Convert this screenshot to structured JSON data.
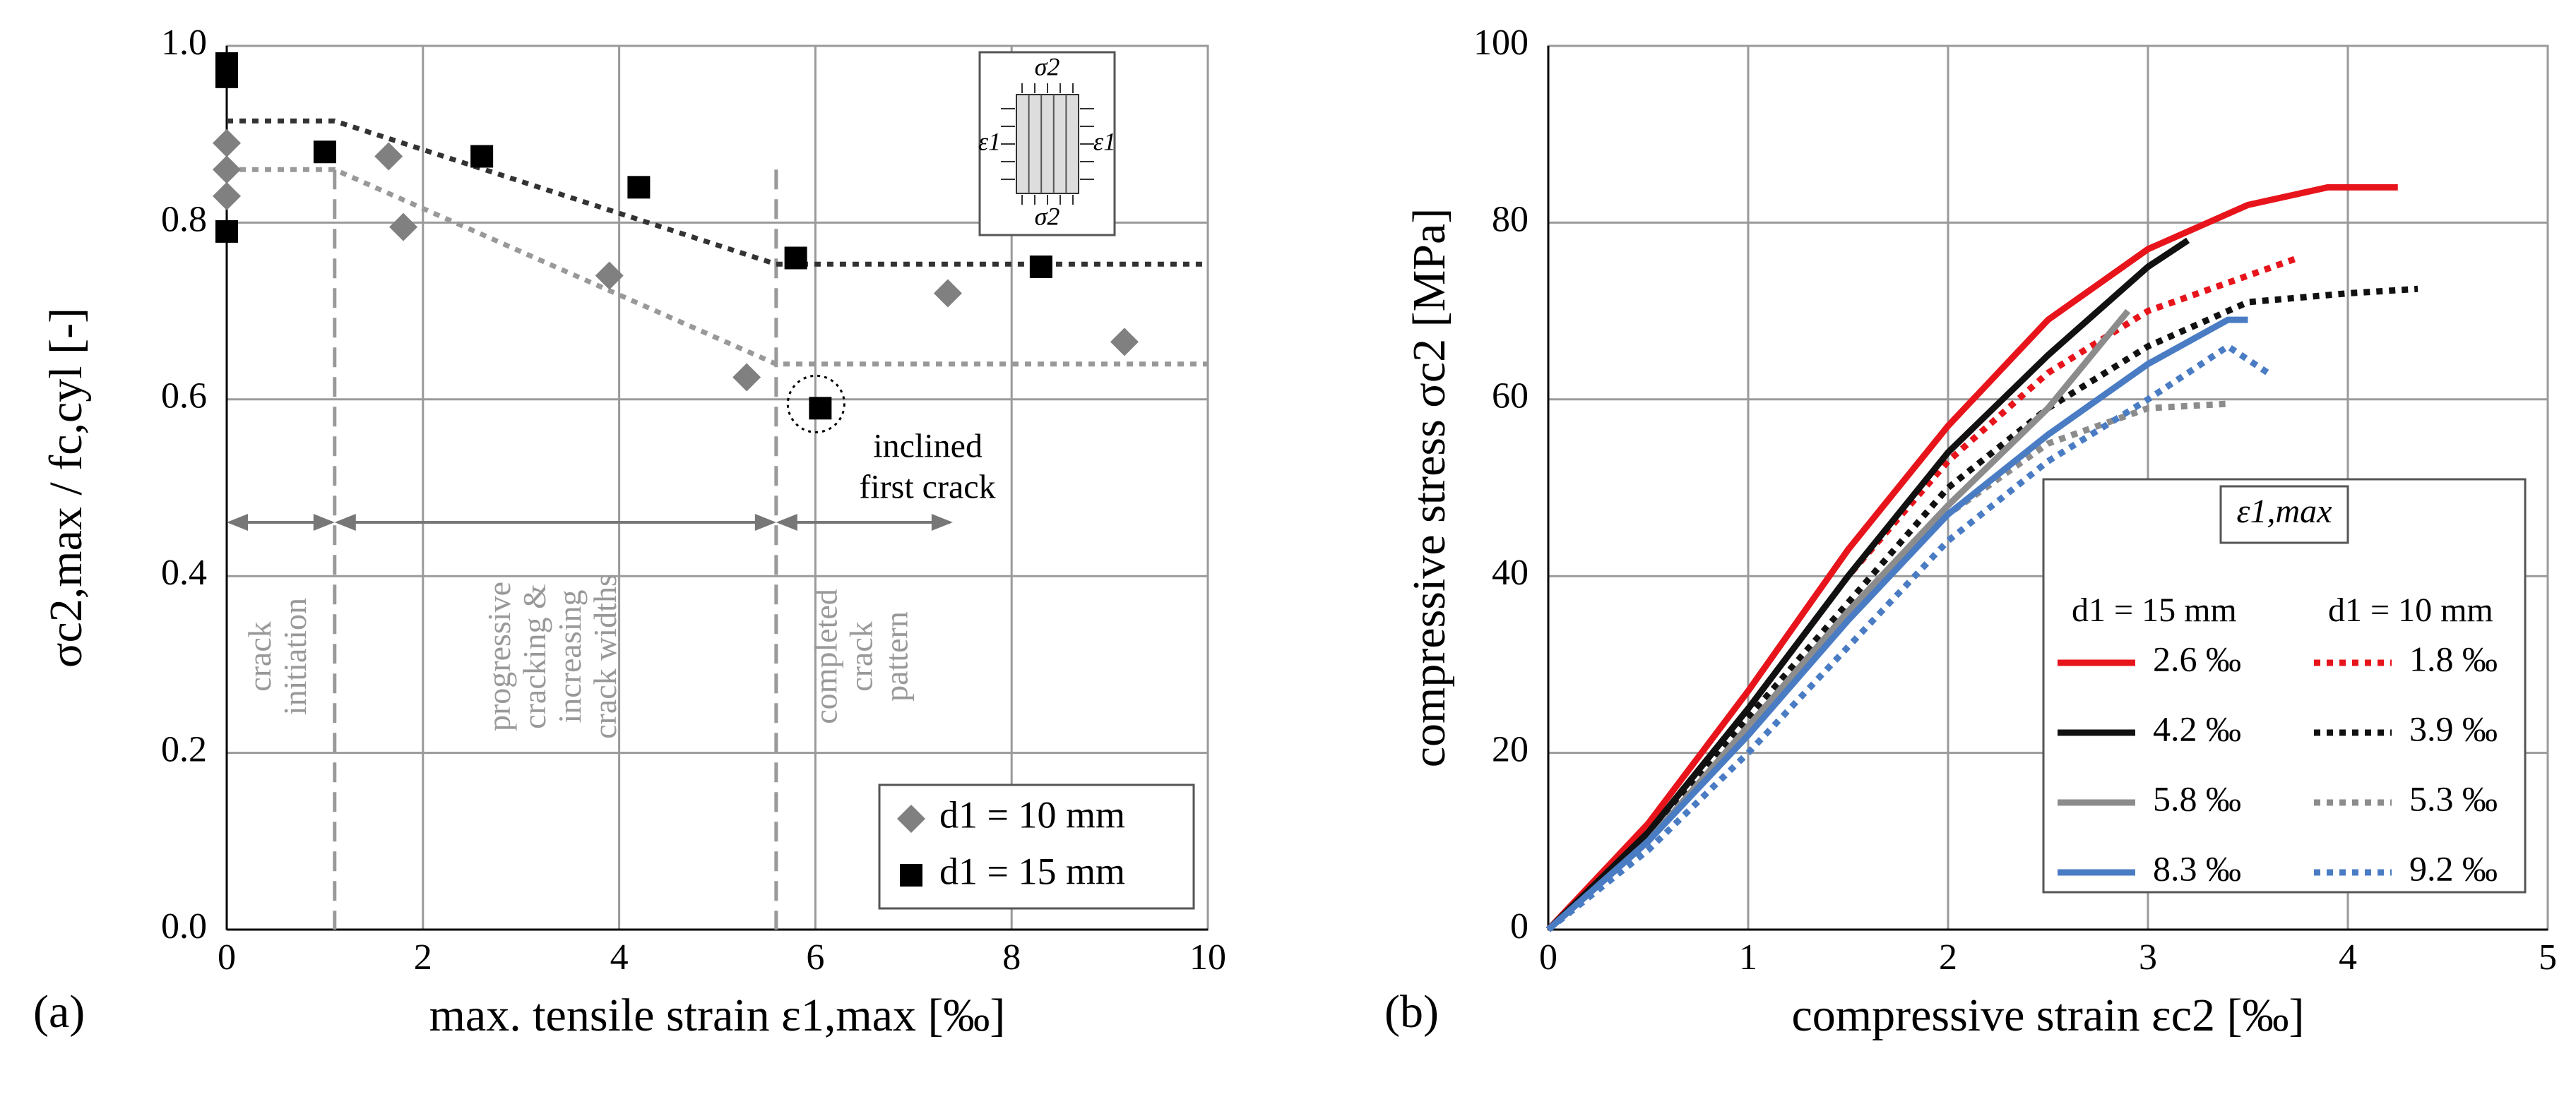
{
  "chart_data": [
    {
      "type": "scatter",
      "panel": "(a)",
      "xlabel": "max. tensile strain ε1,max [‰]",
      "ylabel": "σc2,max / fc,cyl [-]",
      "xlim": [
        0,
        10
      ],
      "ylim": [
        0,
        1
      ],
      "xticks": [
        0,
        2,
        4,
        6,
        8,
        10
      ],
      "yticks": [
        {
          "value": 0,
          "label": "0.0"
        },
        0.2,
        0.4,
        0.6,
        0.8,
        {
          "value": 1,
          "label": "1.0"
        }
      ],
      "grid": true,
      "legend": "lower right",
      "series": [
        {
          "name": "d1 = 10 mm",
          "marker": "diamond",
          "color": "#808080",
          "x": [
            0,
            0,
            0,
            1.65,
            1.8,
            3.9,
            5.3,
            7.35,
            9.15
          ],
          "values": [
            0.89,
            0.86,
            0.83,
            0.875,
            0.795,
            0.74,
            0.625,
            0.72,
            0.665
          ]
        },
        {
          "name": "d1 = 15 mm",
          "marker": "square",
          "color": "#000000",
          "x": [
            0,
            0,
            0,
            1,
            2.6,
            4.2,
            5.8,
            6.05,
            8.3
          ],
          "values": [
            0.98,
            0.965,
            0.79,
            0.88,
            0.875,
            0.84,
            0.76,
            0.59,
            0.75
          ]
        }
      ],
      "trend_lines": [
        {
          "color": "#333333",
          "x": [
            0,
            1.1,
            5.6,
            10
          ],
          "values": [
            0.915,
            0.915,
            0.753,
            0.753
          ]
        },
        {
          "color": "#999999",
          "x": [
            0,
            1.1,
            5.6,
            10
          ],
          "values": [
            0.86,
            0.86,
            0.64,
            0.64
          ]
        }
      ],
      "vlines": [
        1.1,
        5.6
      ],
      "phases": [
        {
          "lines": [
            "crack",
            "initiation"
          ],
          "range": [
            0,
            1.1
          ]
        },
        {
          "lines": [
            "progressive",
            "cracking &",
            "increasing",
            "crack widths"
          ],
          "range": [
            1.1,
            5.6
          ]
        },
        {
          "lines": [
            "completed",
            "crack",
            "pattern"
          ],
          "range": [
            5.6,
            7.4
          ]
        }
      ],
      "annotation": [
        "inclined",
        "first crack"
      ],
      "inset": {
        "stress": "σ2",
        "strain": "ε1"
      }
    },
    {
      "type": "line",
      "panel": "(b)",
      "xlabel": "compressive strain εc2 [‰]",
      "ylabel": "compressive stress σc2 [MPa]",
      "xlim": [
        0,
        5
      ],
      "ylim": [
        0,
        100
      ],
      "xticks": [
        0,
        1,
        2,
        3,
        4,
        5
      ],
      "yticks": [
        0,
        20,
        40,
        60,
        80,
        100
      ],
      "grid": true,
      "legend": "lower right",
      "legend_title": "ε1,max",
      "legend_columns": [
        "d1 = 15 mm",
        "d1 = 10 mm"
      ],
      "series": [
        {
          "name": "2.6 ‰",
          "color": "#e8141b",
          "style": "solid",
          "x": [
            0,
            0.5,
            1,
            1.5,
            2,
            2.5,
            3,
            3.5,
            3.9,
            4.25
          ],
          "values": [
            0,
            12,
            27,
            43,
            57,
            69,
            77,
            82,
            84,
            84
          ]
        },
        {
          "name": "1.8 ‰",
          "color": "#e8141b",
          "style": "dotted",
          "x": [
            0,
            0.5,
            1,
            1.5,
            2,
            2.5,
            3,
            3.5,
            3.75
          ],
          "values": [
            0,
            11,
            25,
            40,
            53,
            63,
            70,
            74,
            76
          ]
        },
        {
          "name": "4.2 ‰",
          "color": "#111111",
          "style": "solid",
          "x": [
            0,
            0.5,
            1,
            1.5,
            2,
            2.5,
            3,
            3.2
          ],
          "values": [
            0,
            11,
            25,
            40,
            54,
            65,
            75,
            78
          ]
        },
        {
          "name": "3.9 ‰",
          "color": "#111111",
          "style": "dotted",
          "x": [
            0,
            0.5,
            1,
            1.5,
            2,
            2.5,
            3,
            3.5,
            4,
            4.35
          ],
          "values": [
            0,
            10,
            24,
            37,
            50,
            59,
            66,
            71,
            72,
            72.5
          ]
        },
        {
          "name": "5.8 ‰",
          "color": "#8c8c8c",
          "style": "solid",
          "x": [
            0,
            0.5,
            1,
            1.5,
            2,
            2.5,
            2.9
          ],
          "values": [
            0,
            10,
            23,
            36,
            48,
            59,
            70
          ]
        },
        {
          "name": "5.3 ‰",
          "color": "#8c8c8c",
          "style": "dotted",
          "x": [
            0,
            0.5,
            1,
            1.5,
            2,
            2.5,
            3,
            3.4
          ],
          "values": [
            0,
            10,
            23,
            36,
            47,
            55,
            59,
            59.5
          ]
        },
        {
          "name": "8.3 ‰",
          "color": "#4a7cc4",
          "style": "solid",
          "x": [
            0,
            0.5,
            1,
            1.5,
            2,
            2.5,
            3,
            3.4,
            3.5
          ],
          "values": [
            0,
            10,
            22,
            35,
            47,
            56,
            64,
            69,
            69
          ]
        },
        {
          "name": "9.2 ‰",
          "color": "#4a7cc4",
          "style": "dotted",
          "x": [
            0,
            0.5,
            1,
            1.5,
            2,
            2.5,
            3,
            3.4,
            3.6
          ],
          "values": [
            0,
            9,
            20,
            32,
            44,
            53,
            60,
            66,
            63
          ]
        }
      ]
    }
  ]
}
